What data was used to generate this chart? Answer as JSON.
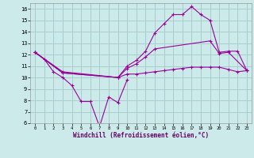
{
  "background_color": "#cceaea",
  "grid_color": "#aacccc",
  "line_color": "#990099",
  "xlabel": "Windchill (Refroidissement éolien,°C)",
  "xlim": [
    -0.5,
    23.5
  ],
  "ylim": [
    6,
    16.5
  ],
  "ytick_vals": [
    6,
    7,
    8,
    9,
    10,
    11,
    12,
    13,
    14,
    15,
    16
  ],
  "xtick_vals": [
    0,
    1,
    2,
    3,
    4,
    5,
    6,
    7,
    8,
    9,
    10,
    11,
    12,
    13,
    14,
    15,
    16,
    17,
    18,
    19,
    20,
    21,
    22,
    23
  ],
  "series": [
    {
      "x": [
        0,
        1,
        2,
        3,
        4,
        5,
        6,
        7,
        8,
        9,
        10
      ],
      "y": [
        12.2,
        11.6,
        10.5,
        10.0,
        9.3,
        7.9,
        7.9,
        5.7,
        8.3,
        7.8,
        9.8
      ]
    },
    {
      "x": [
        0,
        3,
        9,
        10,
        11,
        12,
        13,
        14,
        15,
        16,
        17,
        18,
        19,
        20,
        21,
        22,
        23
      ],
      "y": [
        12.2,
        10.5,
        10.0,
        11.0,
        11.5,
        12.3,
        13.9,
        14.7,
        15.5,
        15.5,
        16.2,
        15.5,
        15.0,
        12.2,
        12.3,
        12.3,
        10.6
      ]
    },
    {
      "x": [
        0,
        3,
        9,
        10,
        11,
        12,
        13,
        19,
        20,
        21,
        23
      ],
      "y": [
        12.2,
        10.4,
        10.0,
        10.8,
        11.2,
        11.8,
        12.5,
        13.2,
        12.1,
        12.2,
        10.6
      ]
    },
    {
      "x": [
        0,
        3,
        9,
        10,
        11,
        12,
        13,
        14,
        15,
        16,
        17,
        18,
        19,
        20,
        21,
        22,
        23
      ],
      "y": [
        12.2,
        10.4,
        10.0,
        10.3,
        10.3,
        10.4,
        10.5,
        10.6,
        10.7,
        10.8,
        10.9,
        10.9,
        10.9,
        10.9,
        10.7,
        10.5,
        10.6
      ]
    }
  ]
}
